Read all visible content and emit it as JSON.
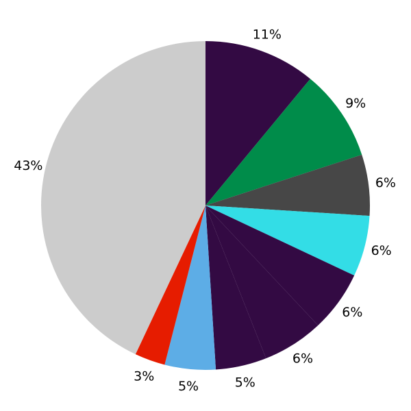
{
  "chart_data": {
    "type": "pie",
    "title": "",
    "start": "top",
    "direction": "clockwise",
    "values": [
      11,
      9,
      6,
      6,
      6,
      6,
      5,
      5,
      3,
      43
    ],
    "labels": [
      "11%",
      "9%",
      "6%",
      "6%",
      "6%",
      "6%",
      "5%",
      "5%",
      "3%",
      "43%"
    ],
    "colors": [
      "#330a43",
      "#008c4a",
      "#474747",
      "#33dde6",
      "#330a43",
      "#330a43",
      "#330a43",
      "#5dade6",
      "#e61c00",
      "#cccccc"
    ]
  }
}
